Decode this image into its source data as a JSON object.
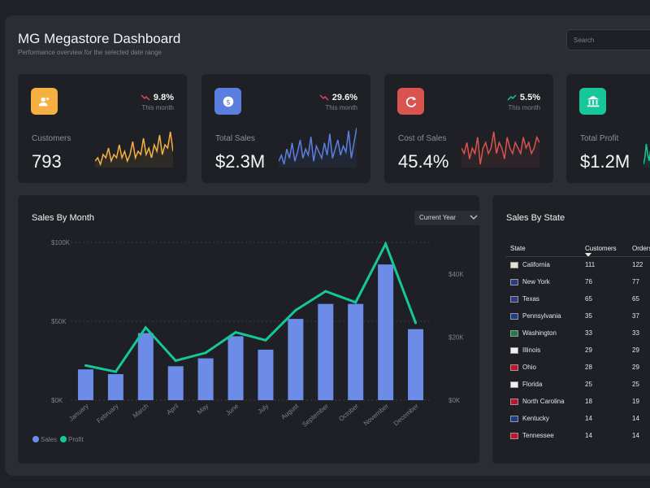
{
  "header": {
    "title": "MG Megastore Dashboard",
    "subtitle": "Performance overview for the selected date range",
    "search_placeholder": "Search"
  },
  "kpis": [
    {
      "label": "Customers",
      "value": "793",
      "change": "9.8%",
      "period": "This month",
      "direction": "down",
      "icon": "users-icon",
      "icon_color": "#f5b041",
      "spark_color": "#f5b041",
      "spark": [
        4,
        5,
        3,
        6,
        5,
        8,
        4,
        6,
        5,
        9,
        5,
        7,
        4,
        6,
        10,
        5,
        7,
        6,
        11,
        6,
        8,
        5,
        9,
        7,
        12,
        6,
        9,
        8,
        13,
        7
      ]
    },
    {
      "label": "Total Sales",
      "value": "$2.3M",
      "change": "29.6%",
      "period": "This month",
      "direction": "down",
      "icon": "dollar-icon",
      "icon_color": "#5b7fe0",
      "spark_color": "#5b7fe0",
      "spark": [
        5,
        7,
        4,
        9,
        6,
        11,
        5,
        8,
        12,
        6,
        9,
        7,
        13,
        5,
        10,
        8,
        6,
        11,
        7,
        14,
        6,
        9,
        12,
        7,
        10,
        8,
        15,
        6,
        11,
        16
      ]
    },
    {
      "label": "Cost of Sales",
      "value": "45.4%",
      "change": "5.5%",
      "period": "This month",
      "direction": "up",
      "icon": "refresh-icon",
      "icon_color": "#d9534f",
      "spark_color": "#d9534f",
      "spark": [
        10,
        9,
        11,
        8,
        10,
        9,
        12,
        7,
        10,
        11,
        9,
        10,
        13,
        9,
        11,
        10,
        8,
        12,
        10,
        9,
        11,
        10,
        9,
        12,
        10,
        11,
        9,
        10,
        12,
        11
      ]
    },
    {
      "label": "Total Profit",
      "value": "$1.2M",
      "change": "",
      "period": "",
      "direction": "up",
      "icon": "bank-icon",
      "icon_color": "#16c79a",
      "spark_color": "#16c79a",
      "spark": [
        4,
        6,
        10,
        7,
        5,
        8,
        6,
        9
      ]
    }
  ],
  "sales_by_month": {
    "title": "Sales By Month",
    "dropdown": "Current Year",
    "legend": {
      "sales": "Sales",
      "profit": "Profit"
    },
    "colors": {
      "sales": "#6c8ce8",
      "profit": "#16c79a"
    }
  },
  "chart_data": {
    "type": "bar",
    "title": "Sales By Month",
    "categories": [
      "January",
      "February",
      "March",
      "April",
      "May",
      "June",
      "July",
      "August",
      "September",
      "October",
      "November",
      "December"
    ],
    "series": [
      {
        "name": "Sales",
        "type": "bar",
        "axis": "left",
        "values": [
          19500,
          16500,
          42500,
          21500,
          26500,
          40500,
          32000,
          51500,
          61000,
          61000,
          86000,
          45000
        ]
      },
      {
        "name": "Profit",
        "type": "line",
        "axis": "right",
        "values": [
          11000,
          9000,
          23000,
          12500,
          15000,
          21500,
          19000,
          28500,
          34500,
          31000,
          49500,
          24500
        ]
      }
    ],
    "ylim": [
      0,
      100000
    ],
    "y2lim": [
      0,
      50000
    ],
    "y_ticks": [
      0,
      50000,
      100000
    ],
    "y_tick_labels": [
      "$0K",
      "$50K",
      "$100K"
    ],
    "y2_ticks": [
      0,
      20000,
      40000
    ],
    "y2_tick_labels": [
      "$0K",
      "$20K",
      "$40K"
    ]
  },
  "sales_by_state": {
    "title": "Sales By State",
    "columns": [
      "State",
      "Customers",
      "Orders"
    ],
    "rows": [
      {
        "state": "California",
        "customers": "111",
        "orders": "122",
        "flag": "#e8e0c8"
      },
      {
        "state": "New York",
        "customers": "76",
        "orders": "77",
        "flag": "#2b3a8c"
      },
      {
        "state": "Texas",
        "customers": "65",
        "orders": "65",
        "flag": "#2b3a8c"
      },
      {
        "state": "Pennsylvania",
        "customers": "35",
        "orders": "37",
        "flag": "#1e3a8a"
      },
      {
        "state": "Washington",
        "customers": "33",
        "orders": "33",
        "flag": "#1f7a4d"
      },
      {
        "state": "Illinois",
        "customers": "29",
        "orders": "29",
        "flag": "#f0f0f0"
      },
      {
        "state": "Ohio",
        "customers": "28",
        "orders": "29",
        "flag": "#c8102e"
      },
      {
        "state": "Florida",
        "customers": "25",
        "orders": "25",
        "flag": "#f0f0f0"
      },
      {
        "state": "North Carolina",
        "customers": "18",
        "orders": "19",
        "flag": "#c8102e"
      },
      {
        "state": "Kentucky",
        "customers": "14",
        "orders": "14",
        "flag": "#1e3a8a"
      },
      {
        "state": "Tennessee",
        "customers": "14",
        "orders": "14",
        "flag": "#c8102e"
      }
    ]
  }
}
